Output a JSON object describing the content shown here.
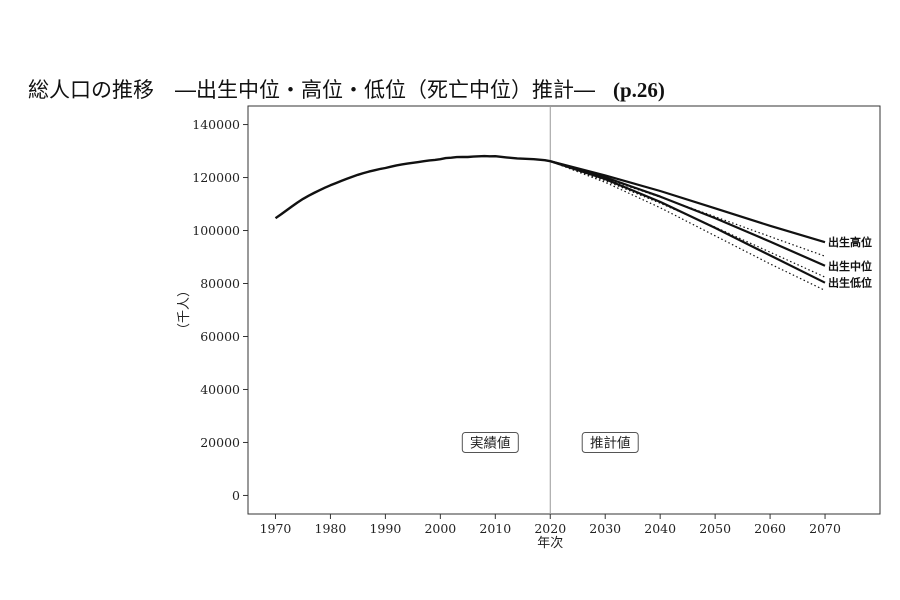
{
  "title": {
    "main": "総人口の推移　―出生中位・高位・低位（死亡中位）推計―",
    "page_ref": "(p.26)"
  },
  "chart_data": {
    "type": "line",
    "xlabel": "年次",
    "ylabel": "（千人）",
    "xlim": [
      1965,
      2080
    ],
    "ylim": [
      -7000,
      147000
    ],
    "x_ticks": [
      1970,
      1980,
      1990,
      2000,
      2010,
      2020,
      2030,
      2040,
      2050,
      2060,
      2070
    ],
    "y_ticks": [
      0,
      20000,
      40000,
      60000,
      80000,
      100000,
      120000,
      140000
    ],
    "divider_x": 2020,
    "annotations": [
      {
        "text": "実績値",
        "x": 2010,
        "y": 20000
      },
      {
        "text": "推計値",
        "x": 2030,
        "y": 20000
      }
    ],
    "actual": {
      "x": [
        1970,
        1971,
        1972,
        1973,
        1974,
        1975,
        1976,
        1977,
        1978,
        1979,
        1980,
        1981,
        1982,
        1983,
        1984,
        1985,
        1986,
        1987,
        1988,
        1989,
        1990,
        1991,
        1992,
        1993,
        1994,
        1995,
        1996,
        1997,
        1998,
        1999,
        2000,
        2001,
        2002,
        2003,
        2004,
        2005,
        2006,
        2007,
        2008,
        2009,
        2010,
        2011,
        2012,
        2013,
        2014,
        2015,
        2016,
        2017,
        2018,
        2019,
        2020
      ],
      "y": [
        104665,
        106100,
        107595,
        109104,
        110573,
        111940,
        113094,
        114165,
        115190,
        116155,
        117060,
        117902,
        118728,
        119536,
        120305,
        121049,
        121660,
        122239,
        122745,
        123205,
        123611,
        124101,
        124567,
        124938,
        125265,
        125570,
        125859,
        126157,
        126472,
        126667,
        126926,
        127316,
        127486,
        127694,
        127787,
        127768,
        127901,
        128033,
        128084,
        128032,
        128057,
        127834,
        127593,
        127414,
        127237,
        127095,
        127042,
        126919,
        126749,
        126555,
        126146
      ]
    },
    "series": [
      {
        "name": "出生高位",
        "line": "solid",
        "x": [
          2020,
          2030,
          2040,
          2050,
          2060,
          2070
        ],
        "y": [
          126146,
          120800,
          114900,
          108400,
          101800,
          95600
        ]
      },
      {
        "name": "出生中位",
        "line": "solid",
        "x": [
          2020,
          2030,
          2040,
          2050,
          2060,
          2070
        ],
        "y": [
          126146,
          120100,
          112800,
          104700,
          95800,
          86700
        ]
      },
      {
        "name": "出生低位",
        "line": "solid",
        "x": [
          2020,
          2030,
          2040,
          2050,
          2060,
          2070
        ],
        "y": [
          126146,
          119400,
          110800,
          101000,
          90600,
          80300
        ]
      },
      {
        "name": "",
        "line": "dotted",
        "x": [
          2020,
          2030,
          2040,
          2050,
          2060,
          2070
        ],
        "y": [
          126146,
          118800,
          110300,
          101300,
          91800,
          82400
        ]
      },
      {
        "name": "",
        "line": "dotted",
        "x": [
          2020,
          2030,
          2040,
          2050,
          2060,
          2070
        ],
        "y": [
          126146,
          118200,
          108600,
          98000,
          87400,
          77400
        ]
      },
      {
        "name": "",
        "line": "dotted",
        "x": [
          2020,
          2030,
          2040,
          2050,
          2060,
          2070
        ],
        "y": [
          126146,
          119600,
          112600,
          105200,
          97700,
          90300
        ]
      }
    ]
  }
}
